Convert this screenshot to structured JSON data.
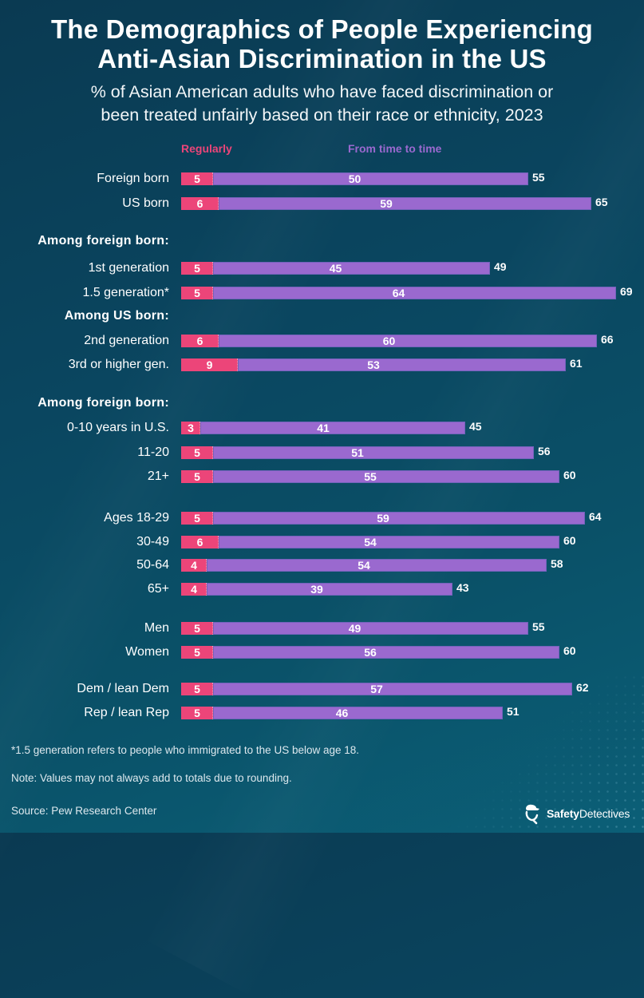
{
  "header": {
    "title_line1": "The Demographics of People Experiencing",
    "title_line2": "Anti-Asian Discrimination in the US",
    "subtitle_line1": "% of Asian American adults who have faced discrimination or",
    "subtitle_line2": "been treated unfairly based on their race or ethnicity, 2023"
  },
  "legend": [
    {
      "label": "Regularly",
      "color": "#ec4579"
    },
    {
      "label": "From time to time",
      "color": "#9a69cf"
    }
  ],
  "chart_data": {
    "type": "bar",
    "orientation": "horizontal",
    "stacked": true,
    "title": "The Demographics of People Experiencing Anti-Asian Discrimination in the US",
    "subtitle": "% of Asian American adults who have faced discrimination or been treated unfairly based on their race or ethnicity, 2023",
    "xlabel": "",
    "ylabel": "",
    "unit": "%",
    "grid": false,
    "legend_position": "top",
    "categories": [
      "Foreign born",
      "US born",
      "1st generation",
      "1.5 generation*",
      "2nd generation",
      "3rd or higher gen.",
      "0-10 years in U.S.",
      "11-20",
      "21+",
      "Ages 18-29",
      "30-49",
      "50-64",
      "65+",
      "Men",
      "Women",
      "Dem / lean Dem",
      "Rep / lean Rep"
    ],
    "series": [
      {
        "name": "Regularly",
        "color": "#ec4579",
        "values": [
          5,
          6,
          5,
          5,
          6,
          9,
          3,
          5,
          5,
          5,
          6,
          4,
          4,
          5,
          5,
          5,
          5
        ]
      },
      {
        "name": "From time to time",
        "color": "#9a69cf",
        "values": [
          50,
          59,
          45,
          64,
          60,
          53,
          41,
          51,
          55,
          59,
          54,
          54,
          39,
          49,
          56,
          57,
          46
        ]
      }
    ],
    "totals": [
      55,
      65,
      49,
      69,
      66,
      61,
      45,
      56,
      60,
      64,
      60,
      58,
      43,
      55,
      60,
      62,
      51
    ],
    "section_headers": [
      {
        "label": "Among foreign born:",
        "before_category": "1st generation"
      },
      {
        "label": "Among US born:",
        "before_category": "2nd generation"
      },
      {
        "label": "Among foreign born:",
        "before_category": "0-10 years in U.S."
      }
    ]
  },
  "footnotes": {
    "generation_note": "*1.5 generation refers to people who immigrated to the US below age 18.",
    "rounding_note": "Note: Values may not always add to totals due to rounding.",
    "source": "Source: Pew Research Center"
  },
  "brand": {
    "bold": "Safety",
    "regular": "Detectives"
  }
}
